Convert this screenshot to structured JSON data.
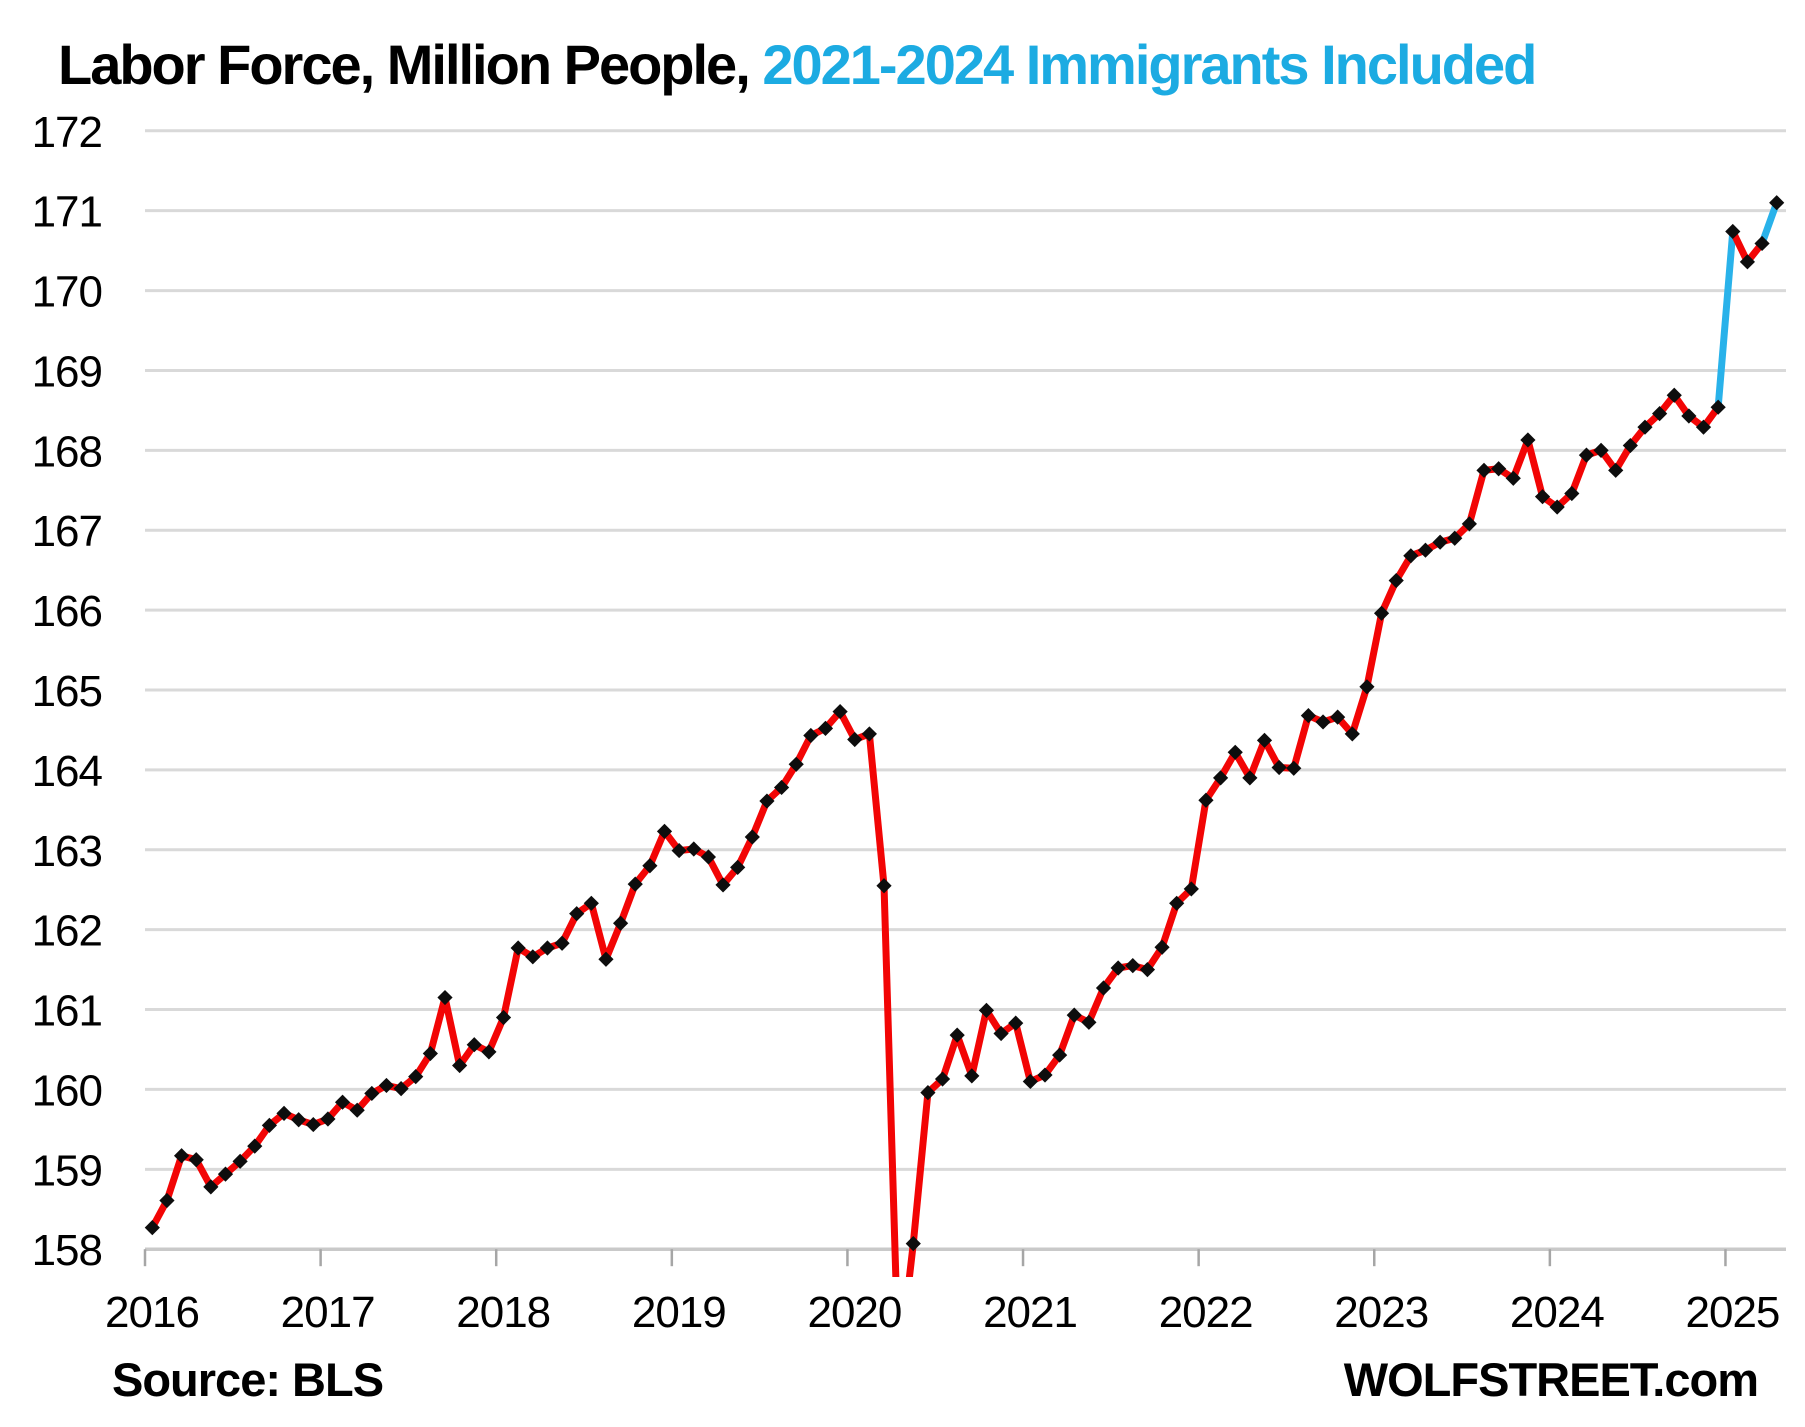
{
  "title": {
    "black": "Labor Force, Million People, ",
    "blue": "2021-2024 Immigrants Included"
  },
  "source_label": "Source: BLS",
  "watermark": "WOLFSTREET.com",
  "colors": {
    "series_red": "#F20505",
    "series_blue": "#29B2EA",
    "title_blue": "#1CABE2",
    "marker_black": "#0D0D0D",
    "gridline": "#D9D9D9",
    "axis_line": "#C9C9C9",
    "tick_mark": "#A6A6A6",
    "text": "#000000"
  },
  "chart_data": {
    "type": "line",
    "title": "Labor Force, Million People, 2021-2024 Immigrants Included",
    "xlabel": "",
    "ylabel": "Labor force, million people",
    "ylim": [
      158,
      172
    ],
    "grid": "horizontal",
    "legend": "none",
    "marker_style": "black diamonds at every monthly data point",
    "line_note": "red line; light-blue highlight on Dec 2024 to Jan 2025 jump (population-control revision adding 2021-2024 immigrants) and on Mar 2025 to Apr 2025 segment",
    "clip_note": "Apr 2020 value (156.48) plunges below the 158 axis and is clipped at the plot bottom",
    "y_ticks": [
      172,
      171,
      170,
      169,
      168,
      167,
      166,
      165,
      164,
      163,
      162,
      161,
      160,
      159,
      158
    ],
    "x_ticks": [
      "2016",
      "2017",
      "2018",
      "2019",
      "2020",
      "2021",
      "2022",
      "2023",
      "2024",
      "2025"
    ],
    "frequency": "monthly, Jan 2016 - Apr 2025",
    "highlight_segments": [
      [
        107,
        108
      ],
      [
        110,
        111
      ]
    ],
    "series_by_year": [
      {
        "year": "2016",
        "values": [
          158.27,
          158.61,
          159.17,
          159.12,
          158.78,
          158.94,
          159.1,
          159.29,
          159.55,
          159.7,
          159.62,
          159.56
        ]
      },
      {
        "year": "2017",
        "values": [
          159.63,
          159.84,
          159.74,
          159.95,
          160.05,
          160.01,
          160.16,
          160.45,
          161.15,
          160.3,
          160.56,
          160.47
        ]
      },
      {
        "year": "2018",
        "values": [
          160.9,
          161.77,
          161.66,
          161.77,
          161.83,
          162.2,
          162.33,
          161.63,
          162.08,
          162.57,
          162.8,
          163.23
        ]
      },
      {
        "year": "2019",
        "values": [
          162.99,
          163.01,
          162.91,
          162.56,
          162.78,
          163.16,
          163.61,
          163.78,
          164.07,
          164.43,
          164.52,
          164.73
        ]
      },
      {
        "year": "2020",
        "values": [
          164.38,
          164.45,
          162.55,
          156.48,
          158.07,
          159.96,
          160.13,
          160.68,
          160.17,
          160.99,
          160.7,
          160.83
        ]
      },
      {
        "year": "2021",
        "values": [
          160.1,
          160.18,
          160.43,
          160.93,
          160.84,
          161.27,
          161.52,
          161.55,
          161.5,
          161.78,
          162.33,
          162.51
        ]
      },
      {
        "year": "2022",
        "values": [
          163.62,
          163.9,
          164.22,
          163.9,
          164.37,
          164.03,
          164.02,
          164.68,
          164.6,
          164.66,
          164.45,
          165.04
        ]
      },
      {
        "year": "2023",
        "values": [
          165.96,
          166.37,
          166.68,
          166.75,
          166.85,
          166.9,
          167.08,
          167.75,
          167.77,
          167.65,
          168.13,
          167.42
        ]
      },
      {
        "year": "2024",
        "values": [
          167.29,
          167.46,
          167.94,
          168.0,
          167.75,
          168.06,
          168.29,
          168.46,
          168.69,
          168.43,
          168.29,
          168.54
        ]
      },
      {
        "year": "2025",
        "values": [
          170.74,
          170.36,
          170.59,
          171.1
        ]
      }
    ]
  }
}
